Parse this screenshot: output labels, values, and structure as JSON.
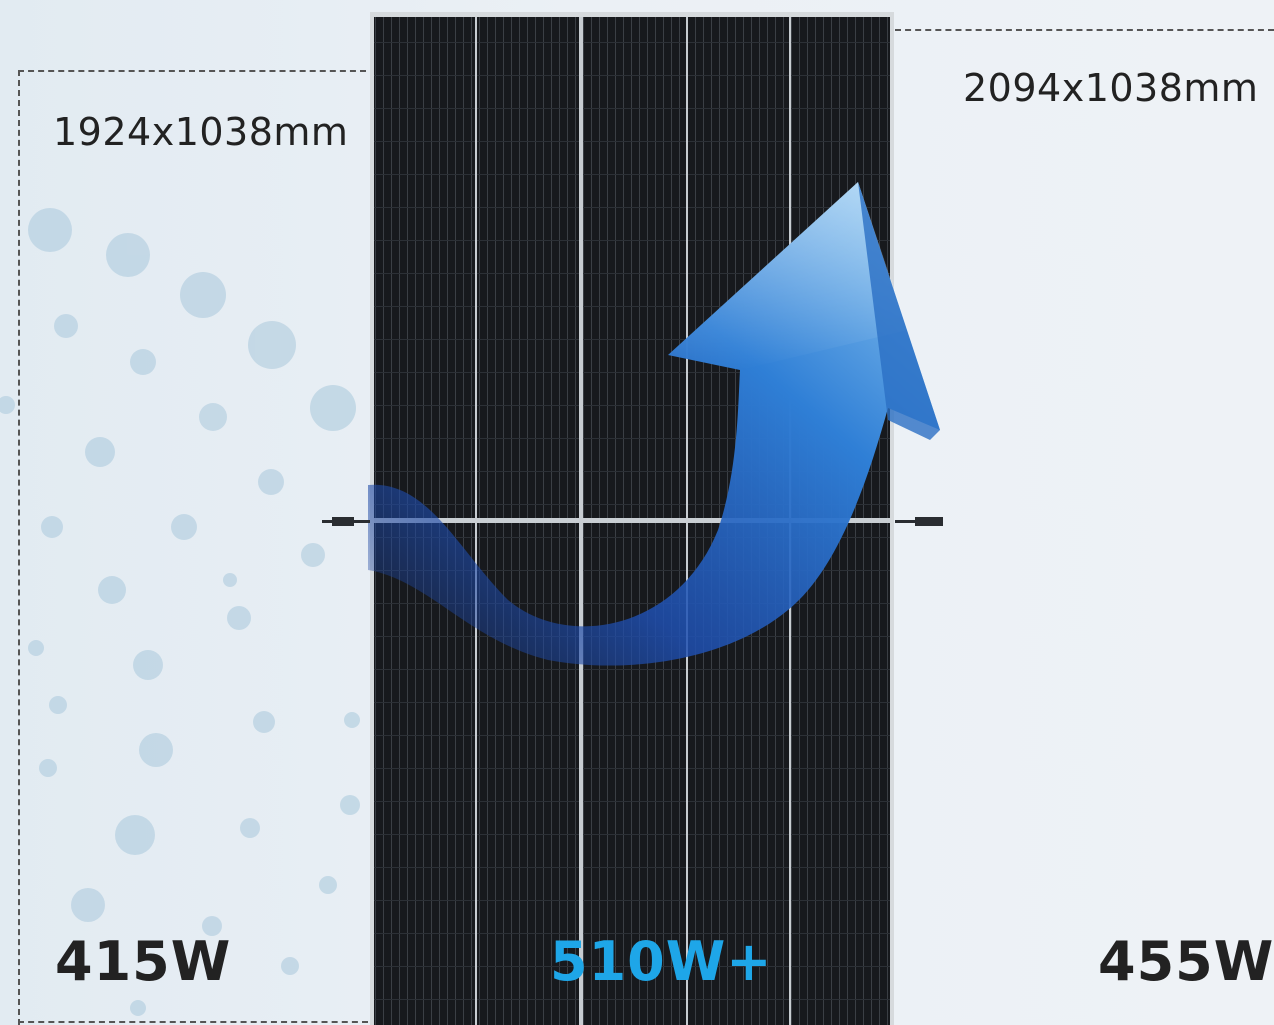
{
  "small_panel": {
    "size": "1924x1038mm",
    "power": "415W"
  },
  "large_panel": {
    "size": "2094x1038mm",
    "power": "455W"
  },
  "new_panel": {
    "power": "510W+"
  },
  "colors": {
    "highlight": "#1ea6e8",
    "panel_cell": "#16181c",
    "frame": "#cfd3d7",
    "arrow": "#2f7fd6"
  },
  "icons": {
    "arrow": "upward-curved-arrow-icon",
    "connector": "cable-connector-icon"
  }
}
